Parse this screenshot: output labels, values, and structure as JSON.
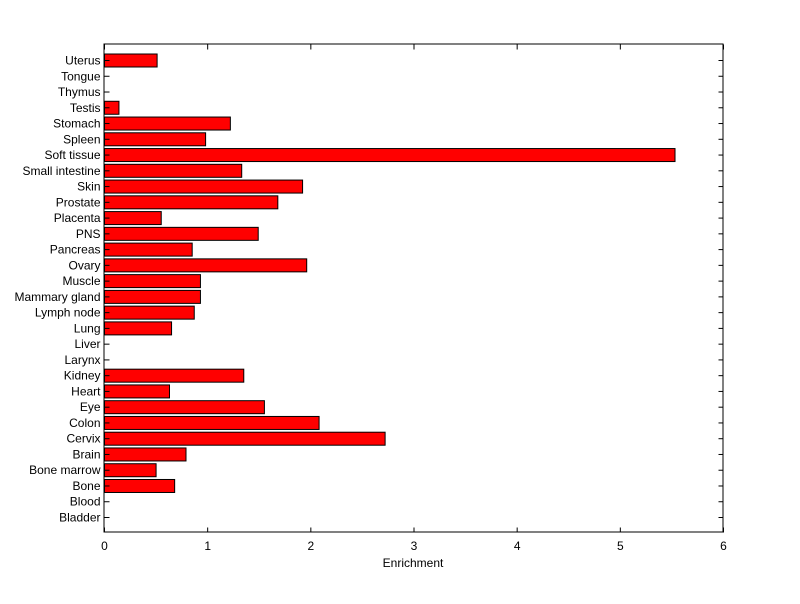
{
  "chart_data": {
    "type": "bar",
    "orientation": "horizontal",
    "title": "",
    "xlabel": "Enrichment",
    "ylabel": "",
    "xlim": [
      0,
      6
    ],
    "xticks": [
      0,
      1,
      2,
      3,
      4,
      5,
      6
    ],
    "bar_color": "#ff0000",
    "categories": [
      "Uterus",
      "Tongue",
      "Thymus",
      "Testis",
      "Stomach",
      "Spleen",
      "Soft tissue",
      "Small intestine",
      "Skin",
      "Prostate",
      "Placenta",
      "PNS",
      "Pancreas",
      "Ovary",
      "Muscle",
      "Mammary gland",
      "Lymph node",
      "Lung",
      "Liver",
      "Larynx",
      "Kidney",
      "Heart",
      "Eye",
      "Colon",
      "Cervix",
      "Brain",
      "Bone marrow",
      "Bone",
      "Blood",
      "Bladder"
    ],
    "values": [
      0.51,
      0,
      0,
      0.14,
      1.22,
      0.98,
      5.53,
      1.33,
      1.92,
      1.68,
      0.55,
      1.49,
      0.85,
      1.96,
      0.93,
      0.93,
      0.87,
      0.65,
      0,
      0,
      1.35,
      0.63,
      1.55,
      2.08,
      2.72,
      0.79,
      0.5,
      0.68,
      0,
      0
    ]
  }
}
